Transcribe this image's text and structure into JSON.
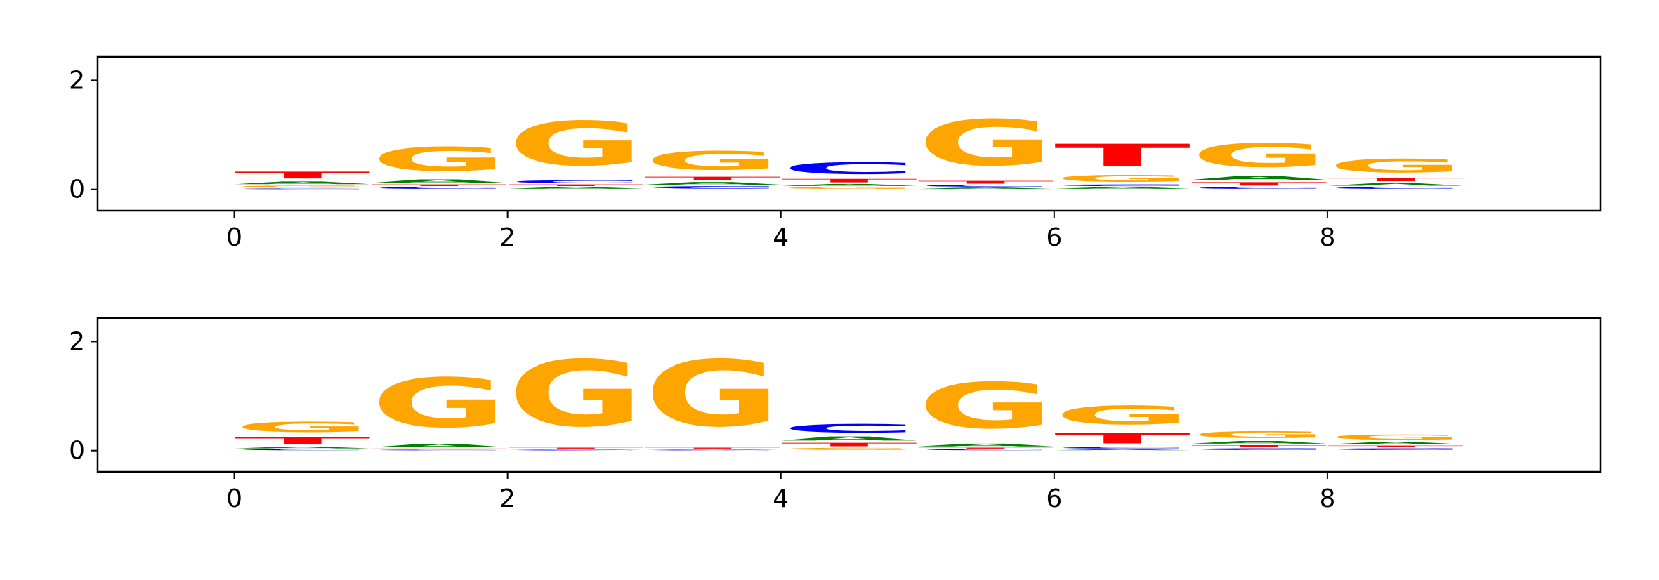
{
  "chart_data": [
    {
      "type": "logo",
      "x": [
        0,
        1,
        2,
        3,
        4,
        5,
        6,
        7,
        8
      ],
      "series": [
        {
          "name": "A",
          "color": "#008000",
          "values": [
            0.08,
            0.1,
            0.05,
            0.08,
            0.06,
            0.04,
            0.05,
            0.12,
            0.08
          ]
        },
        {
          "name": "C",
          "color": "#0000ff",
          "values": [
            0.02,
            0.05,
            0.08,
            0.07,
            0.35,
            0.05,
            0.05,
            0.05,
            0.05
          ]
        },
        {
          "name": "G",
          "color": "#ffa500",
          "values": [
            0.06,
            0.7,
            1.3,
            0.55,
            0.05,
            1.35,
            0.2,
            0.7,
            0.4
          ]
        },
        {
          "name": "T",
          "color": "#ff0000",
          "values": [
            0.2,
            0.05,
            0.05,
            0.1,
            0.1,
            0.08,
            0.65,
            0.1,
            0.1
          ]
        }
      ],
      "xlim": [
        -1,
        10
      ],
      "ylim": [
        -0.39,
        2.43
      ],
      "xticks": [
        0,
        2,
        4,
        6,
        8
      ],
      "yticks": [
        0,
        2
      ]
    },
    {
      "type": "logo",
      "x": [
        0,
        1,
        2,
        3,
        4,
        5,
        6,
        7,
        8
      ],
      "series": [
        {
          "name": "A",
          "color": "#008000",
          "values": [
            0.05,
            0.1,
            0.02,
            0.02,
            0.12,
            0.08,
            0.03,
            0.08,
            0.07
          ]
        },
        {
          "name": "C",
          "color": "#0000ff",
          "values": [
            0.03,
            0.02,
            0.01,
            0.01,
            0.25,
            0.03,
            0.04,
            0.05,
            0.05
          ]
        },
        {
          "name": "G",
          "color": "#ffa500",
          "values": [
            0.3,
            1.45,
            1.95,
            1.95,
            0.06,
            1.35,
            0.55,
            0.2,
            0.15
          ]
        },
        {
          "name": "T",
          "color": "#ff0000",
          "values": [
            0.2,
            0.02,
            0.03,
            0.03,
            0.1,
            0.03,
            0.3,
            0.06,
            0.05
          ]
        }
      ],
      "xlim": [
        -1,
        10
      ],
      "ylim": [
        -0.39,
        2.43
      ],
      "xticks": [
        0,
        2,
        4,
        6,
        8
      ],
      "yticks": [
        0,
        2
      ]
    }
  ]
}
